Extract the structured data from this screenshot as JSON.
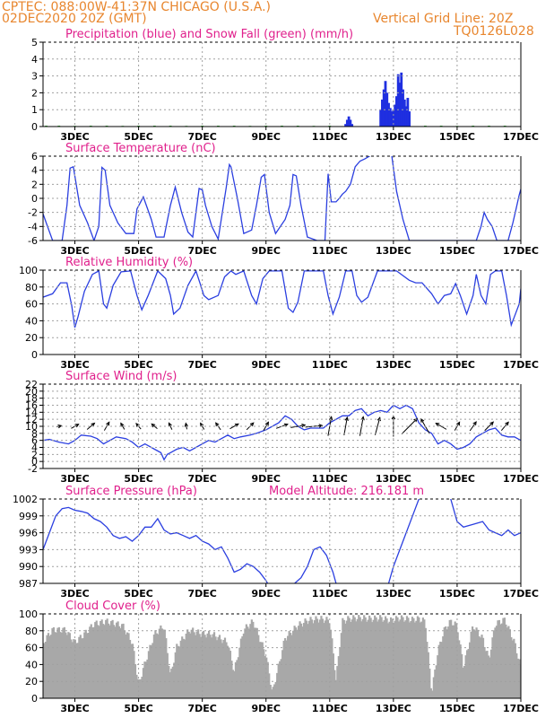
{
  "header": {
    "line1": "CPTEC:  088:00W-41:37N  CHICAGO (U.S.A.)",
    "line2": "02DEC2020 20Z (GMT)",
    "vgrid": "Vertical Grid Line: 20Z",
    "code": "TQ0126L028"
  },
  "colors": {
    "header": "#e8862e",
    "title": "#e0208c",
    "rain": "#1f2fe0",
    "snow": "#21b021",
    "line": "#2b3fe0",
    "wind_arrow": "#000000",
    "cloud": "#a8a8a8",
    "grid": "#a0a0a0"
  },
  "x_axis": {
    "tick_labels": [
      "3DEC",
      "5DEC",
      "7DEC",
      "9DEC",
      "11DEC",
      "13DEC",
      "15DEC",
      "17DEC"
    ],
    "tick_days": [
      3,
      5,
      7,
      9,
      11,
      13,
      15,
      17
    ],
    "range_days": [
      2.0,
      17.0
    ]
  },
  "chart_data": [
    {
      "type": "bar",
      "title": "Precipitation (blue) and Snow Fall (green) (mm/h)",
      "ylim": [
        0,
        5
      ],
      "yticks": [
        0,
        1,
        2,
        3,
        4,
        5
      ],
      "series": [
        {
          "name": "Precipitation",
          "color": "#1f2fe0",
          "x": [
            11.5,
            11.55,
            11.6,
            11.65,
            11.7,
            12.6,
            12.65,
            12.7,
            12.75,
            12.8,
            12.85,
            12.9,
            12.95,
            13.0,
            13.05,
            13.1,
            13.15,
            13.2,
            13.25,
            13.3,
            13.35,
            13.4,
            13.45,
            13.5
          ],
          "values": [
            0.15,
            0.4,
            0.6,
            0.4,
            0.15,
            1.0,
            1.6,
            2.2,
            2.7,
            2.0,
            1.4,
            1.1,
            0.9,
            1.0,
            1.3,
            1.8,
            3.1,
            2.6,
            3.2,
            2.2,
            1.6,
            1.2,
            1.7,
            0.9
          ]
        },
        {
          "name": "Snow Fall",
          "color": "#21b021",
          "x": [
            2.1,
            2.5,
            3.0,
            3.5,
            4.0,
            4.5,
            5.0,
            5.5,
            6.0,
            6.5,
            7.0,
            7.5,
            8.0,
            8.5,
            9.0,
            9.5,
            10.0,
            10.5,
            11.0,
            14.0,
            14.5,
            15.0,
            15.5,
            16.0,
            16.5
          ],
          "values": [
            0.05,
            0.05,
            0.04,
            0.05,
            0.05,
            0.04,
            0.05,
            0.05,
            0.05,
            0.04,
            0.05,
            0.05,
            0.05,
            0.04,
            0.05,
            0.05,
            0.05,
            0.04,
            0.05,
            0.05,
            0.05,
            0.04,
            0.05,
            0.05,
            0.05
          ]
        }
      ]
    },
    {
      "type": "line",
      "title": "Surface Temperature (nC)",
      "ylim": [
        -6,
        6
      ],
      "yticks": [
        -6,
        -4,
        -2,
        0,
        2,
        4,
        6
      ],
      "series": [
        {
          "color": "#2b3fe0",
          "x": [
            2.0,
            2.1,
            2.3,
            2.4,
            2.6,
            2.75,
            2.85,
            2.95,
            3.15,
            3.4,
            3.6,
            3.75,
            3.85,
            3.95,
            4.1,
            4.35,
            4.6,
            4.85,
            4.95,
            5.15,
            5.4,
            5.55,
            5.8,
            6.0,
            6.15,
            6.35,
            6.55,
            6.7,
            6.9,
            7.0,
            7.1,
            7.3,
            7.5,
            7.75,
            7.85,
            7.9,
            8.1,
            8.3,
            8.55,
            8.7,
            8.85,
            8.95,
            9.1,
            9.3,
            9.6,
            9.75,
            9.85,
            9.95,
            10.1,
            10.3,
            10.6,
            10.85,
            10.95,
            11.05,
            11.2,
            11.3,
            11.4,
            11.5,
            11.65,
            11.8,
            11.95,
            12.1,
            12.25,
            12.4,
            12.55,
            12.9,
            12.95,
            13.1,
            13.3,
            13.5,
            13.7,
            13.9,
            14.05,
            14.2,
            14.5,
            14.8,
            15.2,
            15.6,
            15.75,
            15.85,
            15.95,
            16.1,
            16.25,
            16.4,
            16.6,
            16.75,
            16.85,
            16.95,
            17.0
          ],
          "values": [
            -2.2,
            -3.5,
            -6,
            -6,
            -6,
            -1,
            4.3,
            4.5,
            -1,
            -3.5,
            -6,
            -4,
            4.4,
            4.0,
            -1,
            -3.5,
            -5,
            -5,
            -1.5,
            0.2,
            -3,
            -5.5,
            -5.5,
            -1,
            1.6,
            -2,
            -4.8,
            -5.5,
            1.4,
            1.2,
            -1,
            -4,
            -5.8,
            1.5,
            4.8,
            4.5,
            0,
            -5,
            -4.5,
            -1,
            3.0,
            3.4,
            -2,
            -5,
            -3,
            -1,
            3.4,
            3.2,
            -1,
            -5.5,
            -6,
            -6,
            3.5,
            -0.5,
            -0.5,
            0,
            0.6,
            1.0,
            2.0,
            4.5,
            5.3,
            5.6,
            6,
            6.5,
            7,
            8,
            6,
            1,
            -3,
            -6,
            -6,
            -6,
            -6,
            -6,
            -6,
            -6,
            -6,
            -6,
            -4,
            -2,
            -3,
            -4,
            -6,
            -6,
            -6,
            -3.5,
            -1.5,
            0.5,
            1.3
          ]
        }
      ]
    },
    {
      "type": "line",
      "title": "Relative Humidity (%)",
      "ylim": [
        0,
        100
      ],
      "yticks": [
        0,
        20,
        40,
        60,
        80,
        100
      ],
      "series": [
        {
          "color": "#2b3fe0",
          "x": [
            2.0,
            2.3,
            2.55,
            2.75,
            2.9,
            3.0,
            3.1,
            3.3,
            3.55,
            3.75,
            3.9,
            4.0,
            4.2,
            4.45,
            4.75,
            4.95,
            5.1,
            5.3,
            5.6,
            5.85,
            6.0,
            6.1,
            6.3,
            6.55,
            6.8,
            6.95,
            7.05,
            7.2,
            7.5,
            7.7,
            7.9,
            8.05,
            8.3,
            8.55,
            8.7,
            8.9,
            9.1,
            9.3,
            9.5,
            9.7,
            9.85,
            10.0,
            10.2,
            10.5,
            10.8,
            10.95,
            11.1,
            11.3,
            11.5,
            11.7,
            11.85,
            12.0,
            12.2,
            12.5,
            12.7,
            12.9,
            13.1,
            13.5,
            13.7,
            13.9,
            14.2,
            14.4,
            14.6,
            14.8,
            14.95,
            15.1,
            15.3,
            15.5,
            15.6,
            15.75,
            15.9,
            16.05,
            16.2,
            16.4,
            16.55,
            16.7,
            16.8,
            16.95,
            17.0
          ],
          "values": [
            68,
            72,
            85,
            85,
            58,
            32,
            45,
            75,
            95,
            99,
            60,
            55,
            82,
            98,
            99,
            70,
            53,
            70,
            99,
            90,
            70,
            48,
            55,
            82,
            99,
            82,
            70,
            65,
            70,
            92,
            99,
            95,
            99,
            70,
            60,
            90,
            99,
            99,
            99,
            55,
            50,
            62,
            99,
            99,
            99,
            70,
            48,
            68,
            99,
            99,
            70,
            62,
            68,
            99,
            99,
            99,
            99,
            88,
            85,
            85,
            72,
            60,
            70,
            72,
            84,
            70,
            48,
            70,
            95,
            70,
            60,
            95,
            99,
            99,
            70,
            35,
            45,
            60,
            78
          ]
        }
      ]
    },
    {
      "type": "line",
      "title": "Surface Wind (m/s)",
      "ylim": [
        -2,
        22
      ],
      "yticks": [
        -2,
        0,
        2,
        4,
        6,
        8,
        10,
        12,
        14,
        16,
        18,
        20,
        22
      ],
      "series": [
        {
          "color": "#2b3fe0",
          "x": [
            2.0,
            2.2,
            2.5,
            2.8,
            3.0,
            3.2,
            3.5,
            3.7,
            3.9,
            4.1,
            4.3,
            4.6,
            4.8,
            5.0,
            5.2,
            5.5,
            5.7,
            5.8,
            5.9,
            6.0,
            6.2,
            6.4,
            6.6,
            6.8,
            7.0,
            7.2,
            7.4,
            7.6,
            7.8,
            8.0,
            8.2,
            8.5,
            8.7,
            9.0,
            9.2,
            9.4,
            9.6,
            9.8,
            10.0,
            10.2,
            10.4,
            10.6,
            10.8,
            11.0,
            11.2,
            11.4,
            11.6,
            11.8,
            12.0,
            12.2,
            12.4,
            12.6,
            12.8,
            13.0,
            13.2,
            13.4,
            13.6,
            13.8,
            14.0,
            14.2,
            14.4,
            14.6,
            14.8,
            15.0,
            15.2,
            15.4,
            15.6,
            15.8,
            16.0,
            16.2,
            16.4,
            16.6,
            16.8,
            17.0
          ],
          "values": [
            6,
            6.3,
            5.5,
            5,
            6,
            7.5,
            7.2,
            6.5,
            5,
            6,
            7,
            6.5,
            5.5,
            4,
            5,
            3.5,
            2.5,
            0.5,
            2,
            2.5,
            3.5,
            4,
            3,
            4,
            5,
            6,
            5.5,
            6.5,
            7.5,
            6.5,
            7,
            7.5,
            8,
            9,
            10,
            11,
            13,
            12,
            10,
            9,
            9.5,
            9.5,
            9.5,
            11,
            12,
            13,
            13,
            14.5,
            15,
            13,
            14,
            14.5,
            14,
            16,
            15,
            16,
            15,
            11,
            9,
            8,
            5,
            6,
            5,
            3.5,
            4,
            5,
            7,
            8,
            9,
            9.5,
            7.5,
            7,
            7,
            6
          ]
        }
      ],
      "vectors": {
        "times": [
          2.5,
          3.0,
          3.5,
          4.0,
          4.5,
          5.0,
          5.5,
          6.0,
          6.5,
          7.0,
          7.5,
          8.0,
          8.5,
          9.0,
          9.5,
          10.0,
          10.5,
          11.0,
          11.5,
          12.0,
          12.5,
          13.0,
          13.5,
          14.0,
          14.5,
          15.0,
          15.5,
          16.0,
          16.5
        ],
        "angles_deg": [
          15,
          30,
          40,
          60,
          120,
          130,
          140,
          115,
          100,
          120,
          125,
          30,
          45,
          60,
          20,
          10,
          5,
          80,
          80,
          80,
          75,
          90,
          45,
          120,
          150,
          60,
          55,
          45,
          50
        ],
        "lengths": [
          4,
          7,
          8,
          8,
          6,
          6,
          6,
          6,
          5,
          6,
          7,
          8,
          8,
          8,
          10,
          12,
          14,
          16,
          15,
          16,
          15,
          17,
          18,
          14,
          10,
          8,
          9,
          10,
          9
        ]
      }
    },
    {
      "type": "line",
      "title": "Surface Pressure (hPa)",
      "annotation": "Model Altitude: 216.181 m",
      "ylim": [
        987,
        1002
      ],
      "yticks": [
        987,
        990,
        993,
        996,
        999,
        1002
      ],
      "series": [
        {
          "color": "#2b3fe0",
          "x": [
            2.0,
            2.2,
            2.4,
            2.6,
            2.8,
            3.0,
            3.2,
            3.4,
            3.6,
            3.8,
            4.0,
            4.2,
            4.4,
            4.6,
            4.8,
            5.0,
            5.2,
            5.4,
            5.6,
            5.8,
            6.0,
            6.2,
            6.4,
            6.6,
            6.8,
            7.0,
            7.2,
            7.4,
            7.6,
            7.8,
            8.0,
            8.2,
            8.4,
            8.6,
            8.8,
            9.0,
            9.05,
            null,
            9.9,
            10.1,
            10.3,
            10.5,
            10.7,
            10.9,
            11.1,
            11.2,
            null,
            12.85,
            13.0,
            13.2,
            13.4,
            13.6,
            13.8,
            14.0,
            null,
            14.6,
            14.8,
            15.0,
            15.2,
            15.5,
            15.8,
            16.0,
            16.2,
            16.4,
            16.6,
            16.8,
            17.0
          ],
          "values": [
            993,
            996,
            999,
            1000.3,
            1000.5,
            1000,
            999.8,
            999.5,
            998.5,
            998,
            997,
            995.5,
            995,
            995.3,
            994.5,
            995.5,
            997,
            997,
            998.5,
            996.5,
            995.8,
            996,
            995.5,
            995,
            995.5,
            994.5,
            994,
            993,
            993.5,
            991.5,
            989,
            989.5,
            990.5,
            990,
            989,
            987.5,
            987,
            null,
            987,
            988,
            990,
            993,
            993.5,
            992,
            989,
            987,
            null,
            987,
            990,
            993,
            996,
            999,
            1002,
            1003,
            null,
            1004,
            1002,
            998,
            997,
            997.5,
            998,
            996.5,
            996,
            995.5,
            996.5,
            995.5,
            996
          ]
        }
      ]
    },
    {
      "type": "bar",
      "title": "Cloud Cover (%)",
      "ylim": [
        0,
        100
      ],
      "yticks": [
        0,
        20,
        40,
        60,
        80,
        100
      ],
      "series": [
        {
          "name": "Cloud Cover",
          "color": "#a8a8a8",
          "knots_x": [
            2.0,
            2.3,
            2.7,
            3.0,
            3.3,
            3.6,
            4.0,
            4.5,
            4.8,
            5.0,
            5.2,
            5.5,
            5.8,
            6.0,
            6.2,
            6.6,
            7.0,
            7.3,
            7.8,
            8.0,
            8.3,
            8.6,
            9.0,
            9.2,
            9.6,
            10.0,
            10.3,
            10.7,
            11.0,
            11.2,
            11.4,
            11.6,
            11.8,
            12.0,
            12.3,
            12.6,
            12.9,
            13.2,
            13.6,
            13.8,
            14.0,
            14.2,
            14.4,
            14.6,
            14.8,
            15.0,
            15.2,
            15.5,
            15.8,
            16.0,
            16.2,
            16.5,
            16.8,
            17.0
          ],
          "knots_v": [
            70,
            85,
            85,
            70,
            80,
            92,
            95,
            90,
            70,
            20,
            45,
            80,
            90,
            30,
            65,
            85,
            80,
            80,
            70,
            35,
            85,
            95,
            55,
            10,
            75,
            90,
            96,
            98,
            96,
            25,
            95,
            98,
            99,
            99,
            98,
            99,
            96,
            99,
            97,
            98,
            95,
            10,
            60,
            85,
            95,
            90,
            40,
            90,
            75,
            50,
            92,
            97,
            70,
            40
          ]
        }
      ]
    }
  ]
}
